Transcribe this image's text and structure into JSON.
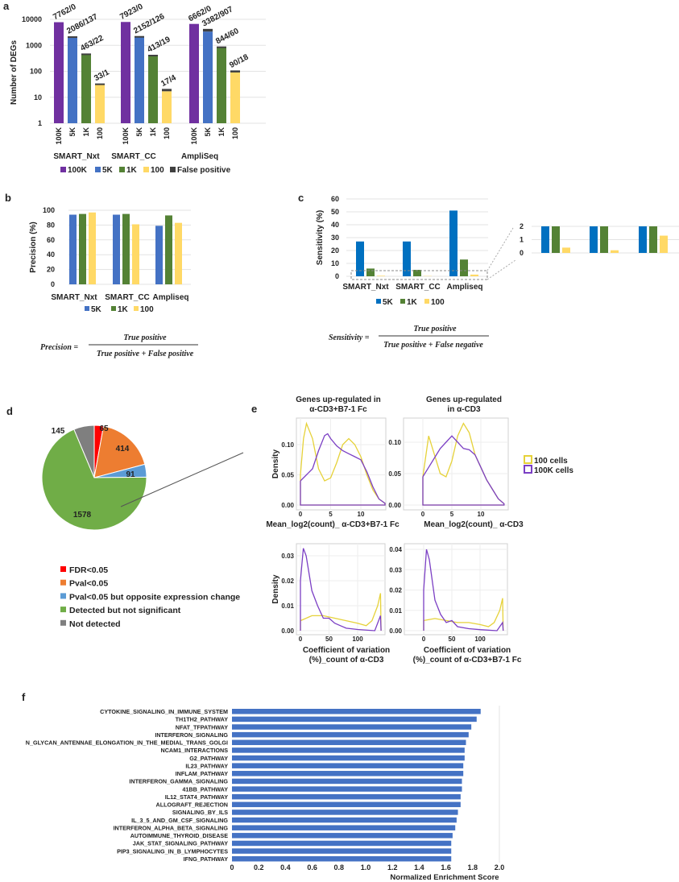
{
  "panel_labels": {
    "a": "a",
    "b": "b",
    "c": "c",
    "d": "d",
    "e": "e",
    "f": "f"
  },
  "colors": {
    "100K": "#7030a0",
    "5K": "#4472c4",
    "1K": "#548235",
    "100": "#ffd966",
    "false_positive": "#404040",
    "c_5K": "#0070c0",
    "fdr": "#ff0000",
    "pval": "#ed7d31",
    "pval_opposite": "#5b9bd5",
    "not_significant": "#70ad47",
    "not_detected": "#7f7f7f",
    "cells_100": "#e6d23a",
    "cells_100K": "#7b3fc4",
    "f_bar": "#4472c4"
  },
  "formulas": {
    "precision": {
      "lhs": "Precision =",
      "numerator": "True positive",
      "denominator": "True positive + False positive"
    },
    "sensitivity": {
      "lhs": "Sensitivity =",
      "numerator": "True positive",
      "denominator": "True positive + False negative"
    }
  },
  "chart_data": [
    {
      "type": "bar",
      "scale": "log",
      "ylabel": "Number of DEGs",
      "ylim": [
        1,
        10000
      ],
      "yticks": [
        "1",
        "10",
        "100",
        "1000",
        "10000"
      ],
      "groups": [
        "SMART_Nxt",
        "SMART_CC",
        "AmpliSeq"
      ],
      "sub_categories": [
        "100K",
        "5K",
        "1K",
        "100"
      ],
      "series": [
        {
          "name": "100K",
          "values": [
            7762,
            7923,
            6662
          ],
          "false_positive": [
            0,
            0,
            0
          ]
        },
        {
          "name": "5K",
          "values": [
            2086,
            2152,
            3382
          ],
          "false_positive": [
            137,
            126,
            907
          ]
        },
        {
          "name": "1K",
          "values": [
            463,
            413,
            844
          ],
          "false_positive": [
            22,
            19,
            60
          ]
        },
        {
          "name": "100",
          "values": [
            33,
            17,
            90
          ],
          "false_positive": [
            1,
            4,
            18
          ]
        }
      ],
      "data_labels": [
        [
          "7762/0",
          "2086/137",
          "463/22",
          "33/1"
        ],
        [
          "7923/0",
          "2152/126",
          "413/19",
          "17/4"
        ],
        [
          "6662/0",
          "3382/907",
          "844/60",
          "90/18"
        ]
      ],
      "legend": [
        "100K",
        "5K",
        "1K",
        "100",
        "False positive"
      ],
      "legend_position": "bottom",
      "grid": true
    },
    {
      "type": "bar",
      "ylabel": "Precision (%)",
      "ylim": [
        0,
        100
      ],
      "yticks": [
        "0",
        "20",
        "40",
        "60",
        "80",
        "100"
      ],
      "categories": [
        "SMART_Nxt",
        "SMART_CC",
        "Ampliseq"
      ],
      "series": [
        {
          "name": "5K",
          "values": [
            94,
            94,
            79
          ]
        },
        {
          "name": "1K",
          "values": [
            95,
            95,
            93
          ]
        },
        {
          "name": "100",
          "values": [
            97,
            81,
            83
          ]
        }
      ],
      "legend": [
        "5K",
        "1K",
        "100"
      ],
      "legend_position": "bottom",
      "grid": true
    },
    {
      "type": "bar",
      "ylabel": "Sensitivity (%)",
      "ylim": [
        0,
        60
      ],
      "yticks": [
        "0",
        "10",
        "20",
        "30",
        "40",
        "50",
        "60"
      ],
      "categories": [
        "SMART_Nxt",
        "SMART_CC",
        "Ampliseq"
      ],
      "series": [
        {
          "name": "5K",
          "values": [
            27,
            27,
            51
          ]
        },
        {
          "name": "1K",
          "values": [
            6,
            5,
            13
          ]
        },
        {
          "name": "100",
          "values": [
            0.4,
            0.2,
            1.3
          ]
        }
      ],
      "legend": [
        "5K",
        "1K",
        "100"
      ],
      "legend_position": "bottom",
      "grid": true,
      "inset": {
        "ylim": [
          0,
          2
        ],
        "yticks": [
          "0",
          "1",
          "2"
        ]
      }
    },
    {
      "type": "pie",
      "slices": [
        {
          "label": "FDR<0.05",
          "value": 65,
          "color": "#ff0000"
        },
        {
          "label": "Pval<0.05",
          "value": 414,
          "color": "#ed7d31"
        },
        {
          "label": "Pval<0.05 but opposite expression change",
          "value": 91,
          "color": "#5b9bd5"
        },
        {
          "label": "Detected but not significant",
          "value": 1578,
          "color": "#70ad47"
        },
        {
          "label": "Not detected",
          "value": 145,
          "color": "#7f7f7f"
        }
      ],
      "value_labels": [
        "65",
        "414",
        "91",
        "1578",
        "145"
      ],
      "legend_position": "bottom"
    },
    {
      "type": "line",
      "title": [
        "Genes up-regulated in",
        "α-CD3+B7-1 Fc"
      ],
      "ylabel": "Density",
      "xlabel": [
        "Mean_log2(count)_ α-CD3+B7-1 Fc"
      ],
      "xlim": [
        0,
        14
      ],
      "ylim": [
        0,
        0.14
      ],
      "xticks": [
        "0",
        "5",
        "10"
      ],
      "xtick_values": [
        0,
        5,
        10
      ],
      "yticks": [
        "0.00",
        "0.05",
        "0.10"
      ],
      "ytick_values": [
        0,
        0.05,
        0.1
      ],
      "series": [
        {
          "name": "100 cells",
          "points": [
            [
              0,
              0.05
            ],
            [
              0.5,
              0.11
            ],
            [
              1,
              0.135
            ],
            [
              2,
              0.11
            ],
            [
              3,
              0.06
            ],
            [
              4,
              0.04
            ],
            [
              5,
              0.045
            ],
            [
              6,
              0.07
            ],
            [
              7,
              0.1
            ],
            [
              8,
              0.11
            ],
            [
              9,
              0.1
            ],
            [
              10,
              0.08
            ],
            [
              11,
              0.05
            ],
            [
              12,
              0.025
            ],
            [
              13,
              0.01
            ],
            [
              14,
              0.003
            ],
            [
              14,
              0
            ],
            [
              0,
              0
            ],
            [
              0,
              0.05
            ]
          ]
        },
        {
          "name": "100K cells",
          "points": [
            [
              0,
              0.04
            ],
            [
              1,
              0.05
            ],
            [
              2,
              0.06
            ],
            [
              3,
              0.09
            ],
            [
              4,
              0.115
            ],
            [
              4.5,
              0.118
            ],
            [
              5,
              0.11
            ],
            [
              6,
              0.098
            ],
            [
              7,
              0.09
            ],
            [
              8,
              0.085
            ],
            [
              9,
              0.08
            ],
            [
              10,
              0.075
            ],
            [
              11,
              0.055
            ],
            [
              12,
              0.03
            ],
            [
              13,
              0.01
            ],
            [
              14,
              0.003
            ],
            [
              14,
              0
            ],
            [
              0,
              0
            ],
            [
              0,
              0.04
            ]
          ]
        }
      ]
    },
    {
      "type": "line",
      "title": [
        "Genes up-regulated",
        "in α-CD3"
      ],
      "ylabel": "",
      "xlabel": [
        "Mean_log2(count)_ α-CD3"
      ],
      "xlim": [
        0,
        14
      ],
      "ylim": [
        0,
        0.14
      ],
      "xticks": [
        "0",
        "5",
        "10"
      ],
      "xtick_values": [
        0,
        5,
        10
      ],
      "yticks": [
        "0.00",
        "0.05",
        "0.10"
      ],
      "ytick_values": [
        0,
        0.05,
        0.1
      ],
      "series": [
        {
          "name": "100 cells",
          "points": [
            [
              0,
              0.045
            ],
            [
              1,
              0.11
            ],
            [
              2,
              0.08
            ],
            [
              3,
              0.05
            ],
            [
              4,
              0.045
            ],
            [
              5,
              0.07
            ],
            [
              6,
              0.11
            ],
            [
              7,
              0.13
            ],
            [
              8,
              0.115
            ],
            [
              9,
              0.08
            ],
            [
              10,
              0.06
            ],
            [
              11,
              0.04
            ],
            [
              12,
              0.025
            ],
            [
              13,
              0.01
            ],
            [
              14,
              0.002
            ],
            [
              14,
              0
            ],
            [
              0,
              0
            ],
            [
              0,
              0.045
            ]
          ]
        },
        {
          "name": "100K cells",
          "points": [
            [
              0,
              0.045
            ],
            [
              1,
              0.06
            ],
            [
              2,
              0.075
            ],
            [
              3,
              0.09
            ],
            [
              4,
              0.1
            ],
            [
              5,
              0.11
            ],
            [
              6,
              0.1
            ],
            [
              7,
              0.09
            ],
            [
              8,
              0.088
            ],
            [
              9,
              0.08
            ],
            [
              10,
              0.06
            ],
            [
              11,
              0.04
            ],
            [
              12,
              0.025
            ],
            [
              13,
              0.01
            ],
            [
              14,
              0.002
            ],
            [
              14,
              0
            ],
            [
              0,
              0
            ],
            [
              0,
              0.045
            ]
          ]
        }
      ]
    },
    {
      "type": "line",
      "title": [],
      "ylabel": "Density",
      "xlabel": [
        "Coefficient of variation",
        "(%)_count of α-CD3"
      ],
      "xlim": [
        0,
        141
      ],
      "ylim": [
        0,
        0.035
      ],
      "xticks": [
        "0",
        "50",
        "100"
      ],
      "xtick_values": [
        0,
        50,
        100
      ],
      "yticks": [
        "0.00",
        "0.01",
        "0.02",
        "0.03"
      ],
      "ytick_values": [
        0,
        0.01,
        0.02,
        0.03
      ],
      "series": [
        {
          "name": "100 cells",
          "points": [
            [
              0,
              0
            ],
            [
              0,
              0.004
            ],
            [
              20,
              0.006
            ],
            [
              40,
              0.006
            ],
            [
              60,
              0.005
            ],
            [
              80,
              0.004
            ],
            [
              100,
              0.003
            ],
            [
              115,
              0.002
            ],
            [
              125,
              0.004
            ],
            [
              135,
              0.01
            ],
            [
              140,
              0.015
            ],
            [
              141,
              0
            ]
          ]
        },
        {
          "name": "100K cells",
          "points": [
            [
              0,
              0
            ],
            [
              0,
              0.02
            ],
            [
              5,
              0.033
            ],
            [
              10,
              0.03
            ],
            [
              20,
              0.016
            ],
            [
              30,
              0.01
            ],
            [
              40,
              0.005
            ],
            [
              50,
              0.005
            ],
            [
              60,
              0.003
            ],
            [
              70,
              0.002
            ],
            [
              80,
              0.001
            ],
            [
              100,
              0.0005
            ],
            [
              130,
              0
            ],
            [
              140,
              0.006
            ],
            [
              141,
              0
            ]
          ]
        }
      ]
    },
    {
      "type": "line",
      "title": [],
      "ylabel": "",
      "xlabel": [
        "Coefficient of variation",
        "(%)_count of  α-CD3+B7-1 Fc"
      ],
      "xlim": [
        0,
        141
      ],
      "ylim": [
        0,
        0.042
      ],
      "xticks": [
        "0",
        "50",
        "100"
      ],
      "xtick_values": [
        0,
        50,
        100
      ],
      "yticks": [
        "0.00",
        "0.01",
        "0.02",
        "0.03",
        "0.04"
      ],
      "ytick_values": [
        0,
        0.01,
        0.02,
        0.03,
        0.04
      ],
      "series": [
        {
          "name": "100 cells",
          "points": [
            [
              0,
              0
            ],
            [
              0,
              0.005
            ],
            [
              20,
              0.006
            ],
            [
              40,
              0.005
            ],
            [
              60,
              0.004
            ],
            [
              80,
              0.004
            ],
            [
              100,
              0.003
            ],
            [
              115,
              0.002
            ],
            [
              125,
              0.004
            ],
            [
              135,
              0.01
            ],
            [
              140,
              0.016
            ],
            [
              141,
              0
            ]
          ]
        },
        {
          "name": "100K cells",
          "points": [
            [
              0,
              0
            ],
            [
              0,
              0.02
            ],
            [
              5,
              0.04
            ],
            [
              10,
              0.035
            ],
            [
              20,
              0.015
            ],
            [
              30,
              0.008
            ],
            [
              40,
              0.004
            ],
            [
              50,
              0.005
            ],
            [
              60,
              0.002
            ],
            [
              80,
              0.001
            ],
            [
              100,
              0.0005
            ],
            [
              130,
              0
            ],
            [
              140,
              0.004
            ],
            [
              141,
              0
            ]
          ]
        }
      ],
      "legend": [
        "100 cells",
        "100K cells"
      ],
      "legend_position": "right"
    },
    {
      "type": "bar",
      "orientation": "horizontal",
      "xlabel": "Normalized Enrichment Score",
      "xlim": [
        0,
        2.0
      ],
      "xticks": [
        "0",
        "0.2",
        "0.4",
        "0.6",
        "0.8",
        "1.0",
        "1.2",
        "1.4",
        "1.6",
        "1.8",
        "2.0"
      ],
      "categories": [
        "CYTOKINE_SIGNALING_IN_IMMUNE_SYSTEM",
        "TH1TH2_PATHWAY",
        "NFAT_TFPATHWAY",
        "INTERFERON_SIGNALING",
        "N_GLYCAN_ANTENNAE_ELONGATION_IN_THE_MEDIAL_TRANS_GOLGI",
        "NCAM1_INTERACTIONS",
        "G2_PATHWAY",
        "IL23_PATHWAY",
        "INFLAM_PATHWAY",
        "INTERFERON_GAMMA_SIGNALING",
        "41BB_PATHWAY",
        "IL12_STAT4_PATHWAY",
        "ALLOGRAFT_REJECTION",
        "SIGNALING_BY_ILS",
        "IL_3_5_AND_GM_CSF_SIGNALING",
        "INTERFERON_ALPHA_BETA_SIGNALING",
        "AUTOIMMUNE_THYROID_DISEASE",
        "JAK_STAT_SIGNALING_PATHWAY",
        "PIP3_SIGNALING_IN_B_LYMPHOCYTES",
        "IFNG_PATHWAY"
      ],
      "values": [
        1.86,
        1.83,
        1.79,
        1.77,
        1.75,
        1.74,
        1.74,
        1.73,
        1.73,
        1.72,
        1.72,
        1.71,
        1.71,
        1.69,
        1.68,
        1.67,
        1.65,
        1.64,
        1.64,
        1.64
      ],
      "grid": true
    }
  ]
}
